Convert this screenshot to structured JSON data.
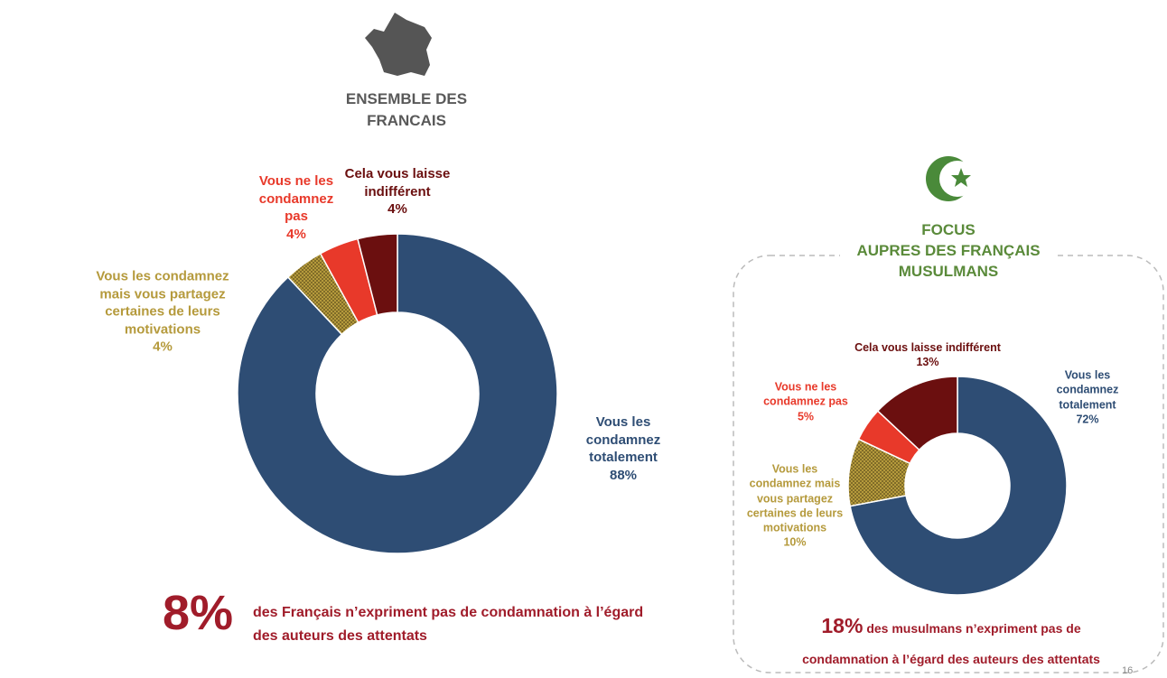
{
  "chart_data": [
    {
      "type": "donut",
      "title": "ENSEMBLE DES FRANCAIS",
      "categories": [
        "Vous les condamnez totalement",
        "Vous les condamnez mais vous partagez certaines de leurs motivations",
        "Vous ne les condamnez pas",
        "Cela vous laisse indifférent"
      ],
      "values": [
        88,
        4,
        4,
        4
      ],
      "value_labels": [
        "88%",
        "4%",
        "4%",
        "4%"
      ],
      "colors": [
        "#2e4d74",
        "#b59a3c",
        "#e8392a",
        "#6b0f0f"
      ],
      "annotation": {
        "label": "8%",
        "text": "des Français n’expriment pas de condamnation à l’égard des auteurs des attentats"
      }
    },
    {
      "type": "donut",
      "title": "FOCUS",
      "subtitle": "AUPRES DES FRANÇAIS MUSULMANS",
      "categories": [
        "Vous les condamnez totalement",
        "Vous les condamnez mais vous partagez certaines de leurs motivations",
        "Vous ne les condamnez pas",
        "Cela vous laisse indifférent"
      ],
      "values": [
        72,
        10,
        5,
        13
      ],
      "value_labels": [
        "72%",
        "10%",
        "5%",
        "13%"
      ],
      "colors": [
        "#2e4d74",
        "#b59a3c",
        "#e8392a",
        "#6b0f0f"
      ],
      "annotation": {
        "label": "18%",
        "text": "des musulmans n’expriment pas de condamnation à l’égard des auteurs des attentats"
      }
    }
  ],
  "page_number": "16"
}
